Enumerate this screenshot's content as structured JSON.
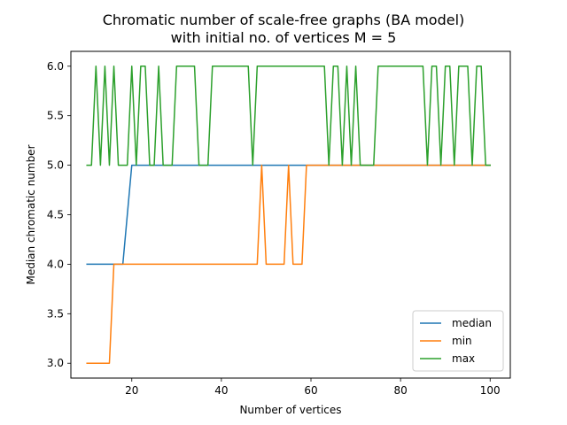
{
  "chart_data": {
    "type": "line",
    "title_lines": [
      "Chromatic number of scale-free graphs (BA model)",
      "with initial no. of vertices M = 5"
    ],
    "xlabel": "Number of vertices",
    "ylabel": "Median chromatic number",
    "xlim": [
      6.4,
      104.5
    ],
    "ylim": [
      2.85,
      6.15
    ],
    "xticks": [
      20,
      40,
      60,
      80,
      100
    ],
    "xtick_labels": [
      "20",
      "40",
      "60",
      "80",
      "100"
    ],
    "yticks": [
      3.0,
      3.5,
      4.0,
      4.5,
      5.0,
      5.5,
      6.0
    ],
    "ytick_labels": [
      "3.0",
      "3.5",
      "4.0",
      "4.5",
      "5.0",
      "5.5",
      "6.0"
    ],
    "grid": false,
    "legend_position": "lower right",
    "x": [
      10,
      11,
      12,
      13,
      14,
      15,
      16,
      17,
      18,
      19,
      20,
      21,
      22,
      23,
      24,
      25,
      26,
      27,
      28,
      29,
      30,
      31,
      32,
      33,
      34,
      35,
      36,
      37,
      38,
      39,
      40,
      41,
      42,
      43,
      44,
      45,
      46,
      47,
      48,
      49,
      50,
      51,
      52,
      53,
      54,
      55,
      56,
      57,
      58,
      59,
      60,
      61,
      62,
      63,
      64,
      65,
      66,
      67,
      68,
      69,
      70,
      71,
      72,
      73,
      74,
      75,
      76,
      77,
      78,
      79,
      80,
      81,
      82,
      83,
      84,
      85,
      86,
      87,
      88,
      89,
      90,
      91,
      92,
      93,
      94,
      95,
      96,
      97,
      98,
      99,
      100
    ],
    "series": [
      {
        "name": "median",
        "color": "#1f77b4",
        "values": [
          4,
          4,
          4,
          4,
          4,
          4,
          4,
          4,
          4,
          4.5,
          5,
          5,
          5,
          5,
          5,
          5,
          5,
          5,
          5,
          5,
          5,
          5,
          5,
          5,
          5,
          5,
          5,
          5,
          5,
          5,
          5,
          5,
          5,
          5,
          5,
          5,
          5,
          5,
          5,
          5,
          5,
          5,
          5,
          5,
          5,
          5,
          5,
          5,
          5,
          5,
          5,
          5,
          5,
          5,
          5,
          5,
          5,
          5,
          5,
          5,
          5,
          5,
          5,
          5,
          5,
          5,
          5,
          5,
          5,
          5,
          5,
          5,
          5,
          5,
          5,
          5,
          5,
          5,
          5,
          5,
          5,
          5,
          5,
          5,
          5,
          5,
          5,
          5,
          5,
          5,
          5
        ]
      },
      {
        "name": "min",
        "color": "#ff7f0e",
        "values": [
          3,
          3,
          3,
          3,
          3,
          3,
          4,
          4,
          4,
          4,
          4,
          4,
          4,
          4,
          4,
          4,
          4,
          4,
          4,
          4,
          4,
          4,
          4,
          4,
          4,
          4,
          4,
          4,
          4,
          4,
          4,
          4,
          4,
          4,
          4,
          4,
          4,
          4,
          4,
          5,
          4,
          4,
          4,
          4,
          4,
          5,
          4,
          4,
          4,
          5,
          5,
          5,
          5,
          5,
          5,
          5,
          5,
          5,
          5,
          5,
          5,
          5,
          5,
          5,
          5,
          5,
          5,
          5,
          5,
          5,
          5,
          5,
          5,
          5,
          5,
          5,
          5,
          5,
          5,
          5,
          5,
          5,
          5,
          5,
          5,
          5,
          5,
          5,
          5,
          5,
          5
        ]
      },
      {
        "name": "max",
        "color": "#2ca02c",
        "values": [
          5,
          5,
          6,
          5,
          6,
          5,
          6,
          5,
          5,
          5,
          6,
          5,
          6,
          6,
          5,
          5,
          6,
          5,
          5,
          5,
          6,
          6,
          6,
          6,
          6,
          5,
          5,
          5,
          6,
          6,
          6,
          6,
          6,
          6,
          6,
          6,
          6,
          5,
          6,
          6,
          6,
          6,
          6,
          6,
          6,
          6,
          6,
          6,
          6,
          6,
          6,
          6,
          6,
          6,
          5,
          6,
          6,
          5,
          6,
          5,
          6,
          5,
          5,
          5,
          5,
          6,
          6,
          6,
          6,
          6,
          6,
          6,
          6,
          6,
          6,
          6,
          5,
          6,
          6,
          5,
          6,
          6,
          5,
          6,
          6,
          6,
          5,
          6,
          6,
          5,
          5
        ]
      }
    ]
  }
}
